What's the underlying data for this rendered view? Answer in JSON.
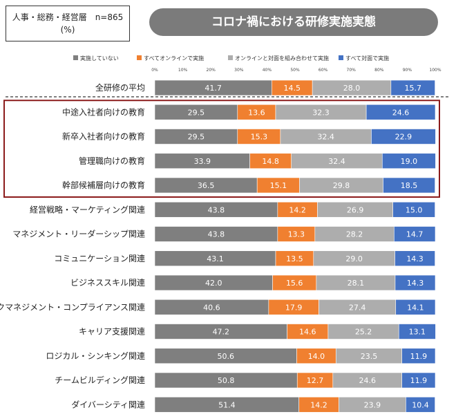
{
  "note": {
    "line1": "人事・総務・経営層　n=865",
    "line2": "(%)"
  },
  "title": "コロナ禍における研修実施実態",
  "chart_data": {
    "type": "bar",
    "stacked": true,
    "orientation": "horizontal",
    "xlim": [
      0,
      100
    ],
    "ticks": [
      "0%",
      "10%",
      "20%",
      "30%",
      "40%",
      "50%",
      "60%",
      "70%",
      "80%",
      "90%",
      "100%"
    ],
    "legend_position": "top",
    "colors": [
      "#7f7f7f",
      "#f08030",
      "#adadad",
      "#4472c4"
    ],
    "series": [
      {
        "name": "実施していない",
        "values": [
          41.7,
          29.5,
          29.5,
          33.9,
          36.5,
          43.8,
          43.8,
          43.1,
          42.0,
          40.6,
          47.2,
          50.6,
          50.8,
          51.4
        ]
      },
      {
        "name": "すべてオンラインで実施",
        "values": [
          14.5,
          13.6,
          15.3,
          14.8,
          15.1,
          14.2,
          13.3,
          13.5,
          15.6,
          17.9,
          14.6,
          14.0,
          12.7,
          14.2
        ]
      },
      {
        "name": "オンラインと対面を組み合わせて実施",
        "values": [
          28.0,
          32.3,
          32.4,
          32.4,
          29.8,
          26.9,
          28.2,
          29.0,
          28.1,
          27.4,
          25.2,
          23.5,
          24.6,
          23.9
        ]
      },
      {
        "name": "すべて対面で実施",
        "values": [
          15.7,
          24.6,
          22.9,
          19.0,
          18.5,
          15.0,
          14.7,
          14.3,
          14.3,
          14.1,
          13.1,
          11.9,
          11.9,
          10.4
        ]
      }
    ],
    "categories": [
      "全研修の平均",
      "中途入社者向けの教育",
      "新卒入社者向けの教育",
      "管理職向けの教育",
      "幹部候補層向けの教育",
      "経営戦略・マーケティング関連",
      "マネジメント・リーダーシップ関連",
      "コミュニケーション関連",
      "ビジネススキル関連",
      "リスクマネジメント・コンプライアンス関連",
      "キャリア支援関連",
      "ロジカル・シンキング関連",
      "チームビルディング関連",
      "ダイバーシティ関連"
    ],
    "highlighted_categories": [
      "中途入社者向けの教育",
      "新卒入社者向けの教育",
      "管理職向けの教育",
      "幹部候補層向けの教育"
    ],
    "highlight_color": "#8b1a1a",
    "grid": false
  }
}
